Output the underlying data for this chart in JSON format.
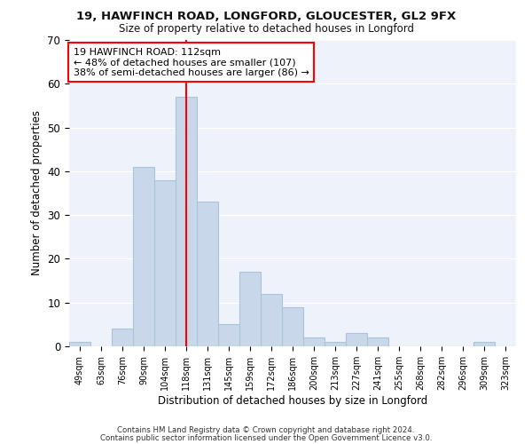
{
  "title1": "19, HAWFINCH ROAD, LONGFORD, GLOUCESTER, GL2 9FX",
  "title2": "Size of property relative to detached houses in Longford",
  "xlabel": "Distribution of detached houses by size in Longford",
  "ylabel": "Number of detached properties",
  "categories": [
    "49sqm",
    "63sqm",
    "76sqm",
    "90sqm",
    "104sqm",
    "118sqm",
    "131sqm",
    "145sqm",
    "159sqm",
    "172sqm",
    "186sqm",
    "200sqm",
    "213sqm",
    "227sqm",
    "241sqm",
    "255sqm",
    "268sqm",
    "282sqm",
    "296sqm",
    "309sqm",
    "323sqm"
  ],
  "values": [
    1,
    0,
    4,
    41,
    38,
    57,
    33,
    5,
    17,
    12,
    9,
    2,
    1,
    3,
    2,
    0,
    0,
    0,
    0,
    1,
    0
  ],
  "bar_color": "#c8d8ea",
  "bar_edge_color": "#aac4dc",
  "red_line_x": 5.0,
  "annotation_text": "19 HAWFINCH ROAD: 112sqm\n← 48% of detached houses are smaller (107)\n38% of semi-detached houses are larger (86) →",
  "ylim": [
    0,
    70
  ],
  "yticks": [
    0,
    10,
    20,
    30,
    40,
    50,
    60,
    70
  ],
  "background_color": "#eef2fa",
  "footer_text1": "Contains HM Land Registry data © Crown copyright and database right 2024.",
  "footer_text2": "Contains public sector information licensed under the Open Government Licence v3.0."
}
